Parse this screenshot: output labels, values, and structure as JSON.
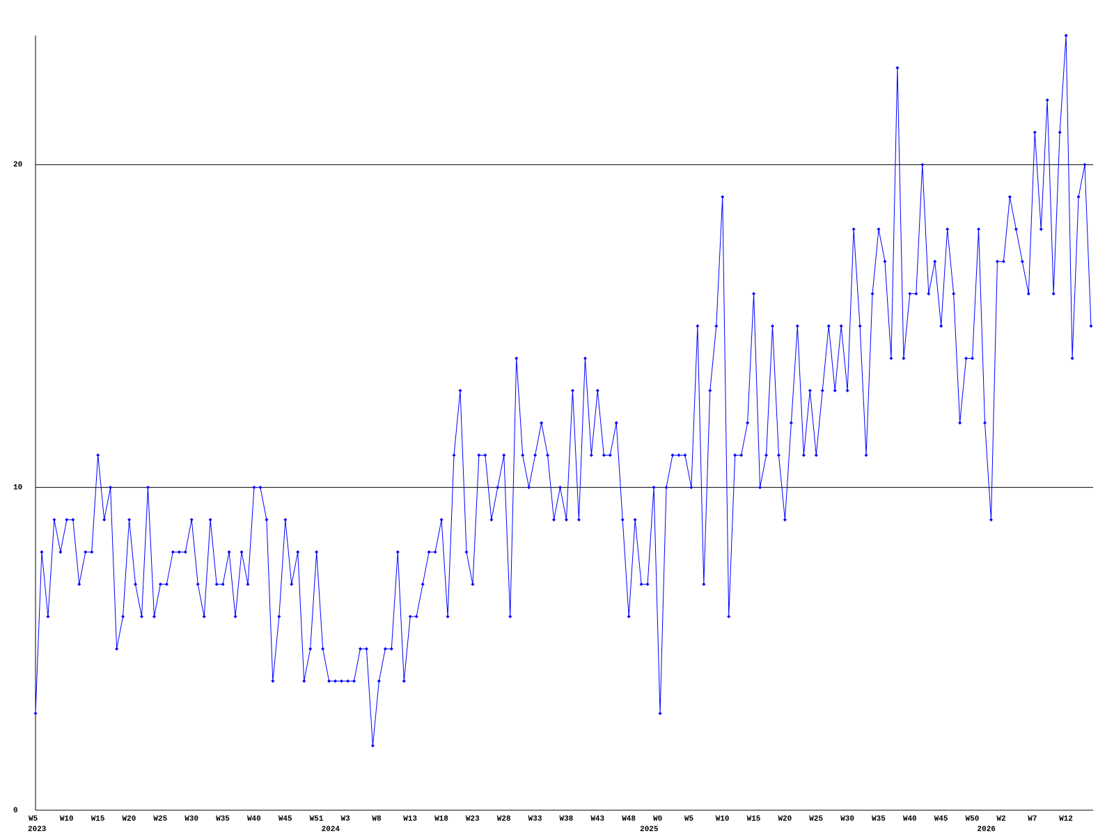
{
  "chart_data": {
    "type": "line",
    "categories": [
      "W5",
      null,
      null,
      null,
      null,
      "W10",
      null,
      null,
      null,
      null,
      "W15",
      null,
      null,
      null,
      null,
      "W20",
      null,
      null,
      null,
      null,
      "W25",
      null,
      null,
      null,
      null,
      "W30",
      null,
      null,
      null,
      null,
      "W35",
      null,
      null,
      null,
      null,
      "W40",
      null,
      null,
      null,
      null,
      "W45",
      null,
      null,
      null,
      null,
      "W51",
      null,
      null,
      null,
      null,
      "W3",
      null,
      null,
      null,
      null,
      "W8",
      null,
      null,
      null,
      null,
      "W13",
      null,
      null,
      null,
      null,
      "W18",
      null,
      null,
      null,
      null,
      "W23",
      null,
      null,
      null,
      null,
      "W28",
      null,
      null,
      null,
      null,
      "W33",
      null,
      null,
      null,
      null,
      "W38",
      null,
      null,
      null,
      null,
      "W43",
      null,
      null,
      null,
      null,
      "W48",
      null,
      null,
      null,
      null,
      "W0",
      null,
      null,
      null,
      null,
      "W5",
      null,
      null,
      null,
      null,
      "W10",
      null,
      null,
      null,
      null,
      "W15",
      null,
      null,
      null,
      null,
      "W20",
      null,
      null,
      null,
      null,
      "W25",
      null,
      null,
      null,
      null,
      "W30",
      null,
      null,
      null,
      null,
      "W35",
      null,
      null,
      null,
      null,
      "W40",
      null,
      null,
      null,
      null,
      "W45",
      null,
      null,
      null,
      null,
      "W50",
      null,
      null,
      null,
      null,
      "W2",
      null,
      null,
      null,
      null,
      "W7",
      null,
      null,
      null,
      null,
      "W12",
      null,
      null,
      null,
      null
    ],
    "year_labels": [
      "2023",
      null,
      null,
      null,
      null,
      null,
      null,
      null,
      null,
      null,
      null,
      null,
      null,
      null,
      null,
      null,
      null,
      null,
      null,
      null,
      null,
      null,
      null,
      null,
      null,
      null,
      null,
      null,
      null,
      null,
      null,
      null,
      null,
      null,
      null,
      null,
      null,
      null,
      null,
      null,
      null,
      null,
      null,
      null,
      null,
      null,
      null,
      "2024",
      null,
      null,
      null,
      null,
      null,
      null,
      null,
      null,
      null,
      null,
      null,
      null,
      null,
      null,
      null,
      null,
      null,
      null,
      null,
      null,
      null,
      null,
      null,
      null,
      null,
      null,
      null,
      null,
      null,
      null,
      null,
      null,
      null,
      null,
      null,
      null,
      null,
      null,
      null,
      null,
      null,
      null,
      null,
      null,
      null,
      null,
      null,
      null,
      null,
      null,
      "2025",
      null,
      null,
      null,
      null,
      null,
      null,
      null,
      null,
      null,
      null,
      null,
      null,
      null,
      null,
      null,
      null,
      null,
      null,
      null,
      null,
      null,
      null,
      null,
      null,
      null,
      null,
      null,
      null,
      null,
      null,
      null,
      null,
      null,
      null,
      null,
      null,
      null,
      null,
      null,
      null,
      null,
      null,
      null,
      null,
      null,
      null,
      null,
      null,
      null,
      null,
      null,
      null,
      null,
      "2026",
      null,
      null,
      null,
      null,
      null,
      null,
      null,
      null,
      null,
      null,
      null,
      null,
      null,
      null,
      null
    ],
    "values": [
      3,
      8,
      6,
      9,
      8,
      9,
      9,
      7,
      8,
      8,
      11,
      9,
      10,
      5,
      6,
      9,
      7,
      6,
      10,
      6,
      7,
      7,
      8,
      8,
      8,
      9,
      7,
      6,
      9,
      7,
      7,
      8,
      6,
      8,
      7,
      10,
      10,
      9,
      4,
      6,
      9,
      7,
      8,
      4,
      5,
      8,
      5,
      4,
      4,
      4,
      4,
      4,
      5,
      5,
      2,
      4,
      5,
      5,
      8,
      4,
      6,
      6,
      7,
      8,
      8,
      9,
      6,
      11,
      13,
      8,
      7,
      11,
      11,
      9,
      10,
      11,
      6,
      14,
      11,
      10,
      11,
      12,
      11,
      9,
      10,
      9,
      13,
      9,
      14,
      11,
      13,
      11,
      11,
      12,
      9,
      6,
      9,
      7,
      7,
      10,
      3,
      10,
      11,
      11,
      11,
      10,
      15,
      7,
      13,
      15,
      19,
      6,
      11,
      11,
      12,
      16,
      10,
      11,
      15,
      11,
      9,
      12,
      15,
      11,
      13,
      11,
      13,
      15,
      13,
      15,
      13,
      18,
      15,
      11,
      16,
      18,
      17,
      14,
      23,
      14,
      16,
      16,
      20,
      16,
      17,
      15,
      18,
      16,
      12,
      14,
      14,
      18,
      12,
      9,
      17,
      17,
      19,
      18,
      17,
      16,
      21,
      18,
      22,
      16,
      21,
      24,
      14,
      19,
      20,
      15
    ],
    "color": "#0000ff",
    "ylim": [
      0,
      24
    ],
    "yticks": [
      0,
      10,
      20
    ],
    "grid": true
  }
}
